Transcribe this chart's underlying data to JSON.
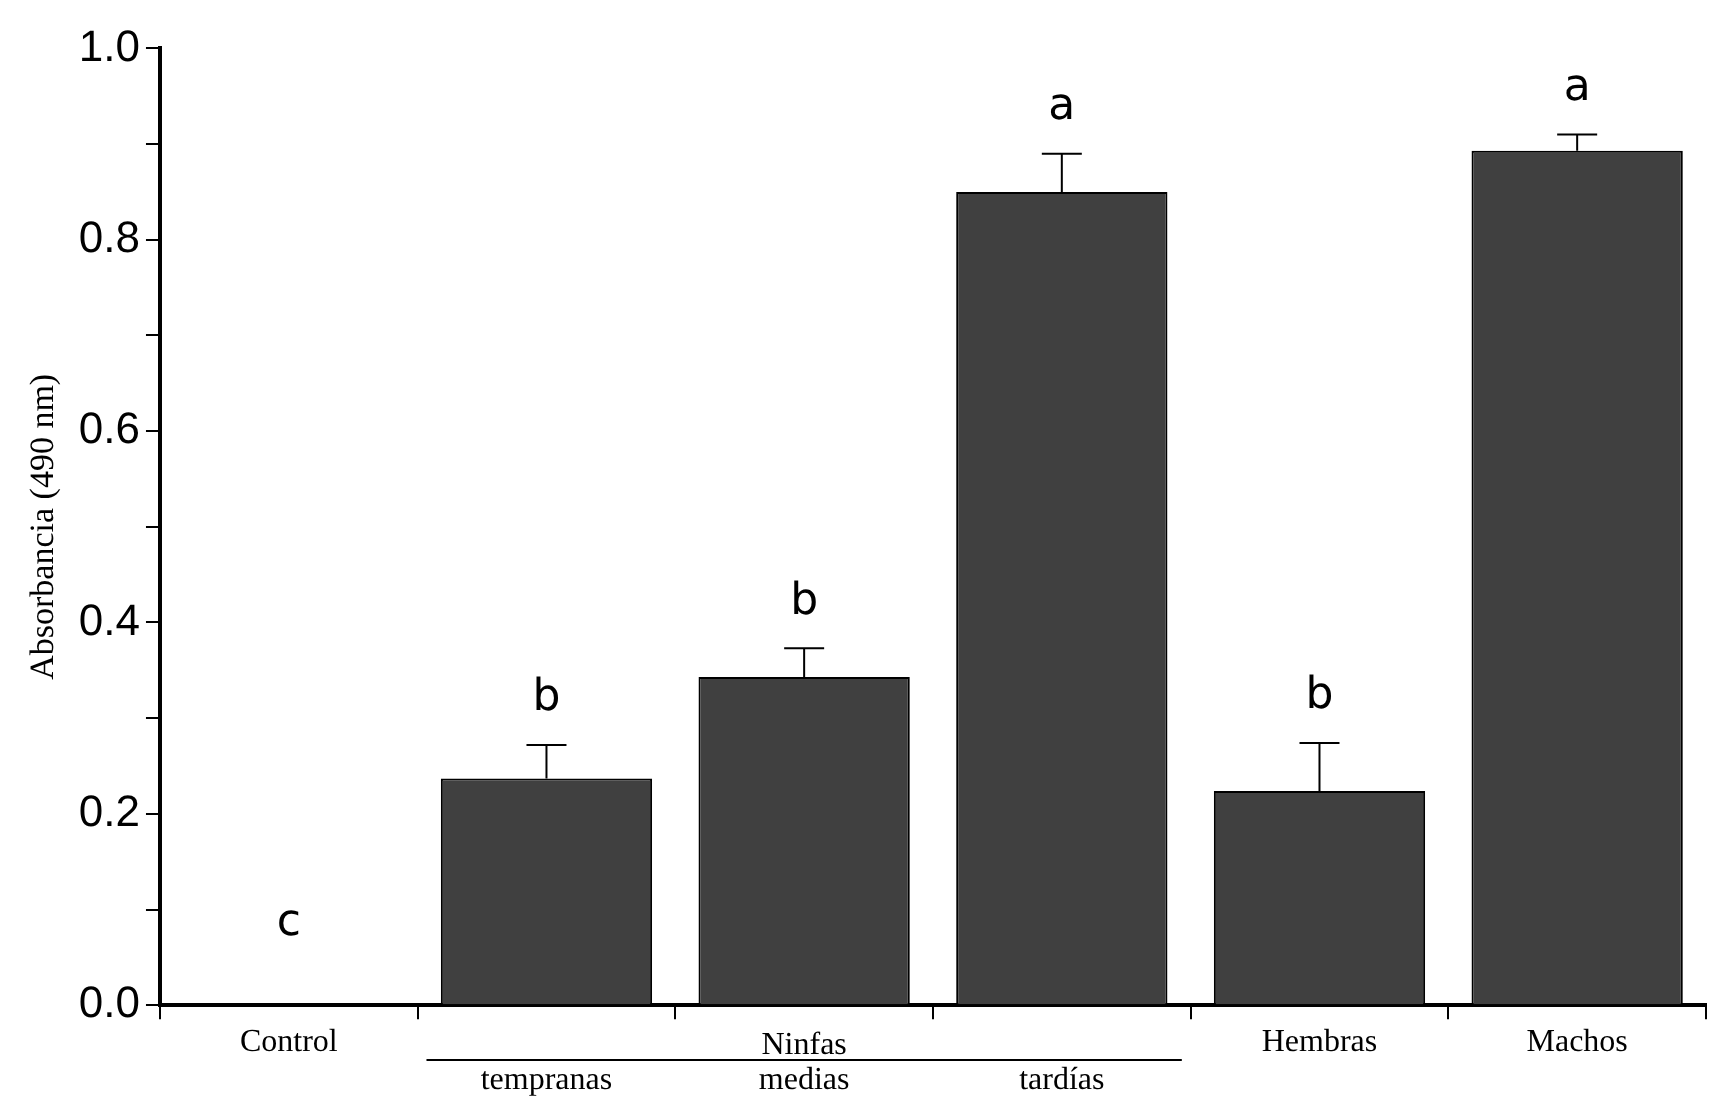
{
  "chart_data": {
    "type": "bar",
    "ylabel": "Absorbancia (490 nm)",
    "categories": [
      "Control",
      "tempranas",
      "medias",
      "tardías",
      "Hembras",
      "Machos"
    ],
    "values": [
      0,
      0.237,
      0.343,
      0.85,
      0.224,
      0.893
    ],
    "errors": [
      null,
      0.035,
      0.03,
      0.04,
      0.05,
      0.017
    ],
    "color": "#404040",
    "ylim": [
      0,
      1.0
    ],
    "yticks": [
      {
        "value": 0,
        "label": "0.0"
      },
      {
        "value": 0.1,
        "label": null
      },
      {
        "value": 0.2,
        "label": "0.2"
      },
      {
        "value": 0.3,
        "label": null
      },
      {
        "value": 0.4,
        "label": "0.4"
      },
      {
        "value": 0.5,
        "label": null
      },
      {
        "value": 0.6,
        "label": "0.6"
      },
      {
        "value": 0.7,
        "label": null
      },
      {
        "value": 0.8,
        "label": "0.8"
      },
      {
        "value": 0.9,
        "label": null
      },
      {
        "value": 1.0,
        "label": "1.0"
      }
    ],
    "grid": false,
    "legend": false,
    "annotations": [
      "c",
      "b",
      "b",
      "a",
      "b",
      "a",
      "Ninfas"
    ]
  }
}
